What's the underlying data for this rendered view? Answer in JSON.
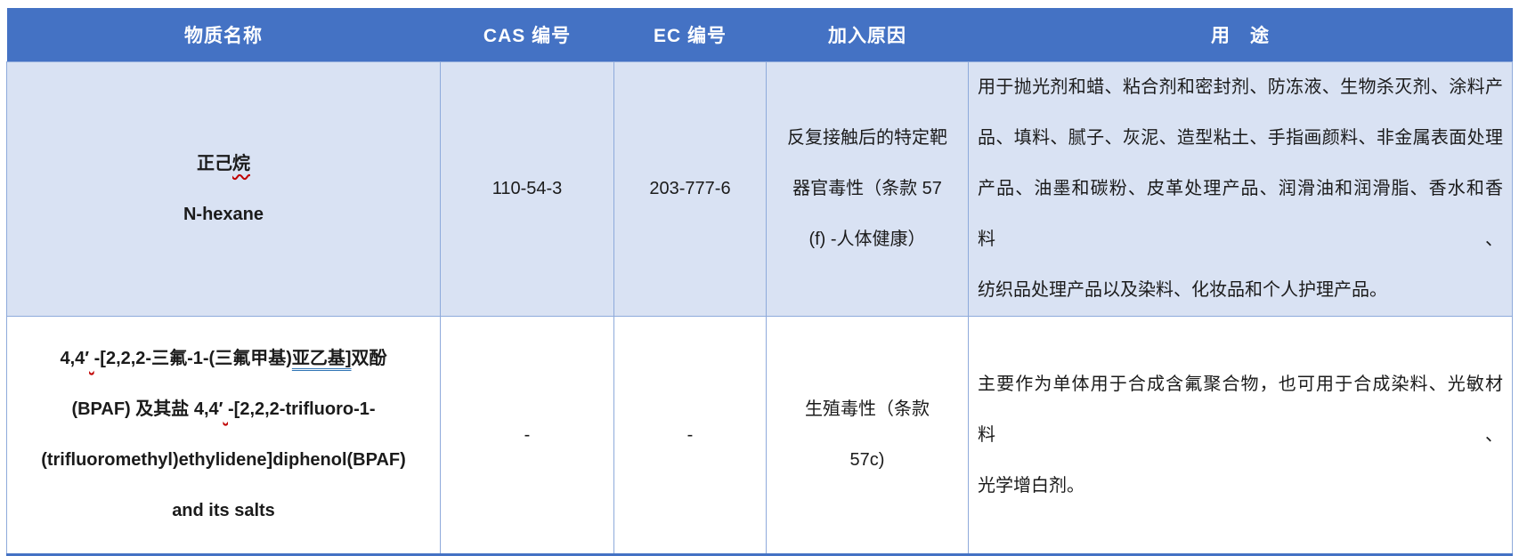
{
  "table": {
    "header": {
      "substance": "物质名称",
      "cas": "CAS 编号",
      "ec": "EC 编号",
      "reason": "加入原因",
      "use": "用　途"
    },
    "rows": [
      {
        "name_line1_main": "正己",
        "name_line1_flagged": "烷",
        "name_line2": "N-hexane",
        "cas": "110-54-3",
        "ec": "203-777-6",
        "reason_line1": "反复接触后的特定靶",
        "reason_line2": "器官毒性（条款 57",
        "reason_line3": "(f) -人体健康）",
        "use_line1": "用于抛光剂和蜡、粘合剂和密封剂、防冻液、生物杀灭剂、涂料产",
        "use_line2": "品、填料、腻子、灰泥、造型粘土、手指画颜料、非金属表面处理",
        "use_line3": "产品、油墨和碳粉、皮革处理产品、润滑油和润滑脂、香水和香料、",
        "use_line4": "纺织品处理产品以及染料、化妆品和个人护理产品。"
      },
      {
        "name_line1_seg1": "4,4′",
        "name_line1_gap": " ",
        "name_line1_seg2": "-[2,2,2-三氟-1-(三氟甲基)",
        "name_line1_flagged": "亚乙基]",
        "name_line1_seg3": "双酚",
        "name_line2_seg1": "(BPAF) 及其盐 4,4′",
        "name_line2_gap": " ",
        "name_line2_seg2": "-[2,2,2-trifluoro-1-",
        "name_line3": "(trifluoromethyl)ethylidene]diphenol(BPAF)",
        "name_line4": "and its salts",
        "cas": "-",
        "ec": "-",
        "reason_line1": "生殖毒性（条款",
        "reason_line2": "57c)",
        "use_line1": "主要作为单体用于合成含氟聚合物，也可用于合成染料、光敏材料、",
        "use_line2": "光学增白剂。"
      }
    ]
  },
  "colors": {
    "header_bg": "#4472C4",
    "row1_bg": "#D9E2F3",
    "cell_border": "#8EAADB",
    "outer_bottom_border": "#4472C4",
    "header_text": "#FFFFFF",
    "spellcheck_underline": "#C00000",
    "grammar_underline": "#2E74B5"
  }
}
